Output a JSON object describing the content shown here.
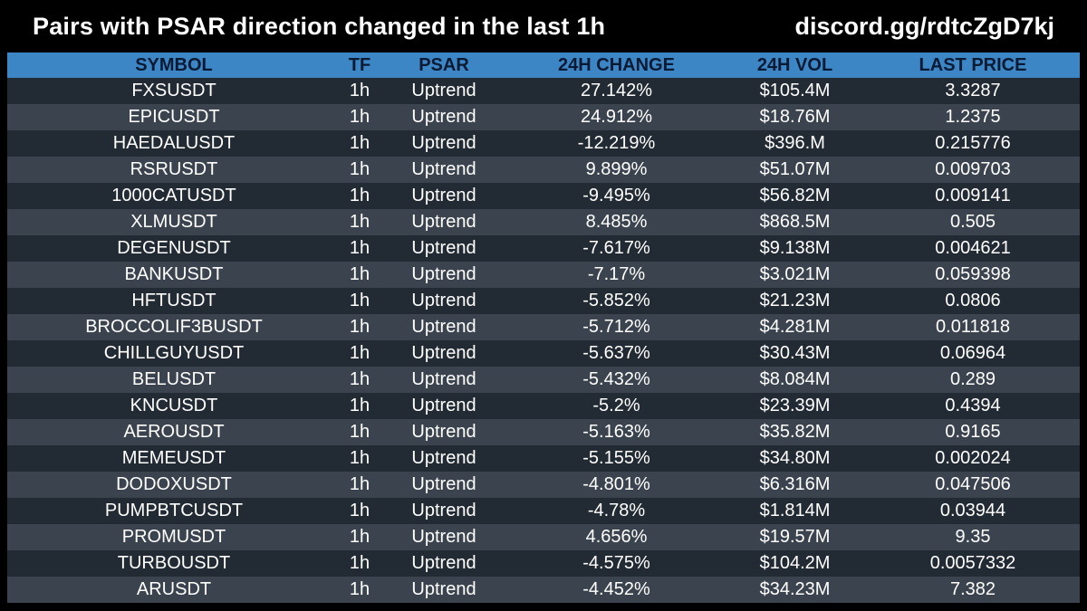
{
  "header": {
    "title": "Pairs with PSAR direction changed in the last 1h",
    "link": "discord.gg/rdtcZgD7kj"
  },
  "colors": {
    "background": "#000000",
    "header_row": "#3d86c6",
    "row_dark": "#222a33",
    "row_light": "#3b444e",
    "text": "#ffffff"
  },
  "table": {
    "columns": [
      "SYMBOL",
      "TF",
      "PSAR",
      "24H CHANGE",
      "24H VOL",
      "LAST PRICE"
    ],
    "rows": [
      [
        "FXSUSDT",
        "1h",
        "Uptrend",
        "27.142%",
        "$105.4M",
        "3.3287"
      ],
      [
        "EPICUSDT",
        "1h",
        "Uptrend",
        "24.912%",
        "$18.76M",
        "1.2375"
      ],
      [
        "HAEDALUSDT",
        "1h",
        "Uptrend",
        "-12.219%",
        "$396.M",
        "0.215776"
      ],
      [
        "RSRUSDT",
        "1h",
        "Uptrend",
        "9.899%",
        "$51.07M",
        "0.009703"
      ],
      [
        "1000CATUSDT",
        "1h",
        "Uptrend",
        "-9.495%",
        "$56.82M",
        "0.009141"
      ],
      [
        "XLMUSDT",
        "1h",
        "Uptrend",
        "8.485%",
        "$868.5M",
        "0.505"
      ],
      [
        "DEGENUSDT",
        "1h",
        "Uptrend",
        "-7.617%",
        "$9.138M",
        "0.004621"
      ],
      [
        "BANKUSDT",
        "1h",
        "Uptrend",
        "-7.17%",
        "$3.021M",
        "0.059398"
      ],
      [
        "HFTUSDT",
        "1h",
        "Uptrend",
        "-5.852%",
        "$21.23M",
        "0.0806"
      ],
      [
        "BROCCOLIF3BUSDT",
        "1h",
        "Uptrend",
        "-5.712%",
        "$4.281M",
        "0.011818"
      ],
      [
        "CHILLGUYUSDT",
        "1h",
        "Uptrend",
        "-5.637%",
        "$30.43M",
        "0.06964"
      ],
      [
        "BELUSDT",
        "1h",
        "Uptrend",
        "-5.432%",
        "$8.084M",
        "0.289"
      ],
      [
        "KNCUSDT",
        "1h",
        "Uptrend",
        "-5.2%",
        "$23.39M",
        "0.4394"
      ],
      [
        "AEROUSDT",
        "1h",
        "Uptrend",
        "-5.163%",
        "$35.82M",
        "0.9165"
      ],
      [
        "MEMEUSDT",
        "1h",
        "Uptrend",
        "-5.155%",
        "$34.80M",
        "0.002024"
      ],
      [
        "DODOXUSDT",
        "1h",
        "Uptrend",
        "-4.801%",
        "$6.316M",
        "0.047506"
      ],
      [
        "PUMPBTCUSDT",
        "1h",
        "Uptrend",
        "-4.78%",
        "$1.814M",
        "0.03944"
      ],
      [
        "PROMUSDT",
        "1h",
        "Uptrend",
        "4.656%",
        "$19.57M",
        "9.35"
      ],
      [
        "TURBOUSDT",
        "1h",
        "Uptrend",
        "-4.575%",
        "$104.2M",
        "0.0057332"
      ],
      [
        "ARUSDT",
        "1h",
        "Uptrend",
        "-4.452%",
        "$34.23M",
        "7.382"
      ]
    ]
  }
}
